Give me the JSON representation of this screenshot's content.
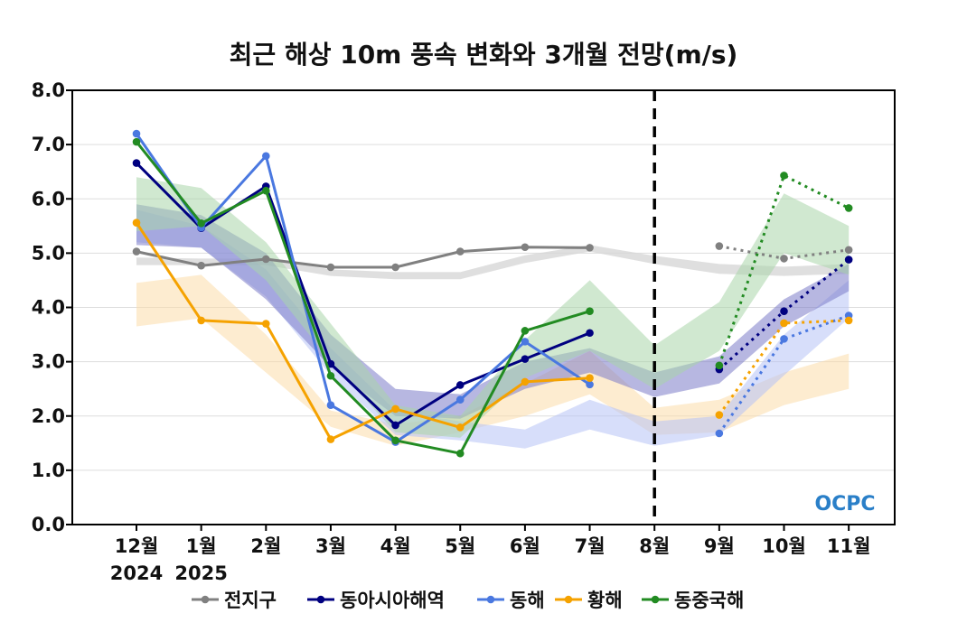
{
  "chart_data": {
    "type": "line",
    "title": "최근 해상 10m 풍속 변화와 3개월 전망(m/s)",
    "categories": [
      "12월",
      "1월",
      "2월",
      "3월",
      "4월",
      "5월",
      "6월",
      "7월",
      "8월",
      "9월",
      "10월",
      "11월"
    ],
    "year_labels": [
      {
        "index": 0,
        "text": "2024"
      },
      {
        "index": 1,
        "text": "2025"
      }
    ],
    "ylim": [
      0,
      8
    ],
    "yticks": [
      "0.0",
      "1.0",
      "2.0",
      "3.0",
      "4.0",
      "5.0",
      "6.0",
      "7.0",
      "8.0"
    ],
    "grid": "horizontal",
    "forecast_divider_index": 8,
    "legend_position": "bottom",
    "series": [
      {
        "name": "전지구",
        "color": "#808080",
        "band_color": "#d9d9d9",
        "observed": [
          5.03,
          4.77,
          4.89,
          4.74,
          4.74,
          5.03,
          5.11,
          5.1,
          null,
          null,
          null,
          null
        ],
        "forecast": [
          null,
          null,
          null,
          null,
          null,
          null,
          null,
          null,
          null,
          5.13,
          4.9,
          5.06
        ],
        "band_low": [
          4.78,
          4.78,
          4.78,
          4.58,
          4.52,
          4.52,
          4.82,
          5.03,
          4.8,
          4.62,
          4.58,
          4.62
        ],
        "band_high": [
          4.92,
          4.9,
          4.9,
          4.7,
          4.65,
          4.65,
          4.96,
          5.15,
          4.95,
          4.8,
          4.75,
          4.8
        ]
      },
      {
        "name": "동아시아해역",
        "color": "#000080",
        "band_color": "#7b7bc8",
        "observed": [
          6.66,
          5.46,
          6.23,
          2.96,
          1.83,
          2.57,
          3.05,
          3.53,
          null,
          null,
          null,
          null
        ],
        "forecast": [
          null,
          null,
          null,
          null,
          null,
          null,
          null,
          null,
          null,
          2.86,
          3.93,
          4.88
        ],
        "band_low": [
          5.15,
          5.1,
          4.15,
          2.9,
          2.0,
          1.95,
          2.5,
          2.8,
          2.35,
          2.6,
          3.65,
          4.3
        ],
        "band_high": [
          5.9,
          5.7,
          5.0,
          3.5,
          2.5,
          2.4,
          3.0,
          3.25,
          2.8,
          3.1,
          4.15,
          4.8
        ]
      },
      {
        "name": "동해",
        "color": "#4a78e0",
        "band_color": "#b7c3f5",
        "observed": [
          7.2,
          5.47,
          6.79,
          2.2,
          1.52,
          2.3,
          3.37,
          2.58,
          null,
          null,
          null,
          null
        ],
        "forecast": [
          null,
          null,
          null,
          null,
          null,
          null,
          null,
          null,
          null,
          1.68,
          3.42,
          3.85
        ],
        "band_low": [
          5.2,
          5.1,
          4.2,
          2.75,
          1.65,
          1.55,
          1.4,
          1.75,
          1.45,
          1.65,
          2.75,
          3.8
        ],
        "band_high": [
          5.8,
          5.5,
          4.7,
          3.25,
          2.1,
          1.9,
          1.75,
          2.3,
          1.9,
          2.0,
          3.5,
          4.5
        ]
      },
      {
        "name": "황해",
        "color": "#f5a200",
        "band_color": "#fbdcaa",
        "observed": [
          5.56,
          3.76,
          3.7,
          1.57,
          2.13,
          1.79,
          2.63,
          2.7,
          null,
          null,
          null,
          null
        ],
        "forecast": [
          null,
          null,
          null,
          null,
          null,
          null,
          null,
          null,
          null,
          2.02,
          3.71,
          3.76
        ],
        "band_low": [
          3.65,
          3.8,
          2.8,
          1.8,
          1.45,
          1.7,
          2.0,
          2.4,
          1.65,
          1.7,
          2.2,
          2.5
        ],
        "band_high": [
          4.45,
          4.6,
          3.5,
          2.1,
          1.85,
          2.0,
          2.6,
          3.2,
          2.15,
          2.3,
          2.8,
          3.15
        ]
      },
      {
        "name": "동중국해",
        "color": "#228b22",
        "band_color": "#a9d5a9",
        "observed": [
          7.05,
          5.55,
          6.15,
          2.74,
          1.55,
          1.31,
          3.57,
          3.93,
          null,
          null,
          null,
          null
        ],
        "forecast": [
          null,
          null,
          null,
          null,
          null,
          null,
          null,
          null,
          null,
          2.93,
          6.43,
          5.83
        ],
        "band_low": [
          5.4,
          5.5,
          4.5,
          3.0,
          1.7,
          1.6,
          2.7,
          3.2,
          2.5,
          3.2,
          5.0,
          4.6
        ],
        "band_high": [
          6.4,
          6.2,
          5.2,
          3.7,
          2.2,
          2.0,
          3.4,
          4.5,
          3.3,
          4.1,
          6.1,
          5.5
        ]
      }
    ]
  },
  "logo": {
    "text": "OCPC"
  }
}
